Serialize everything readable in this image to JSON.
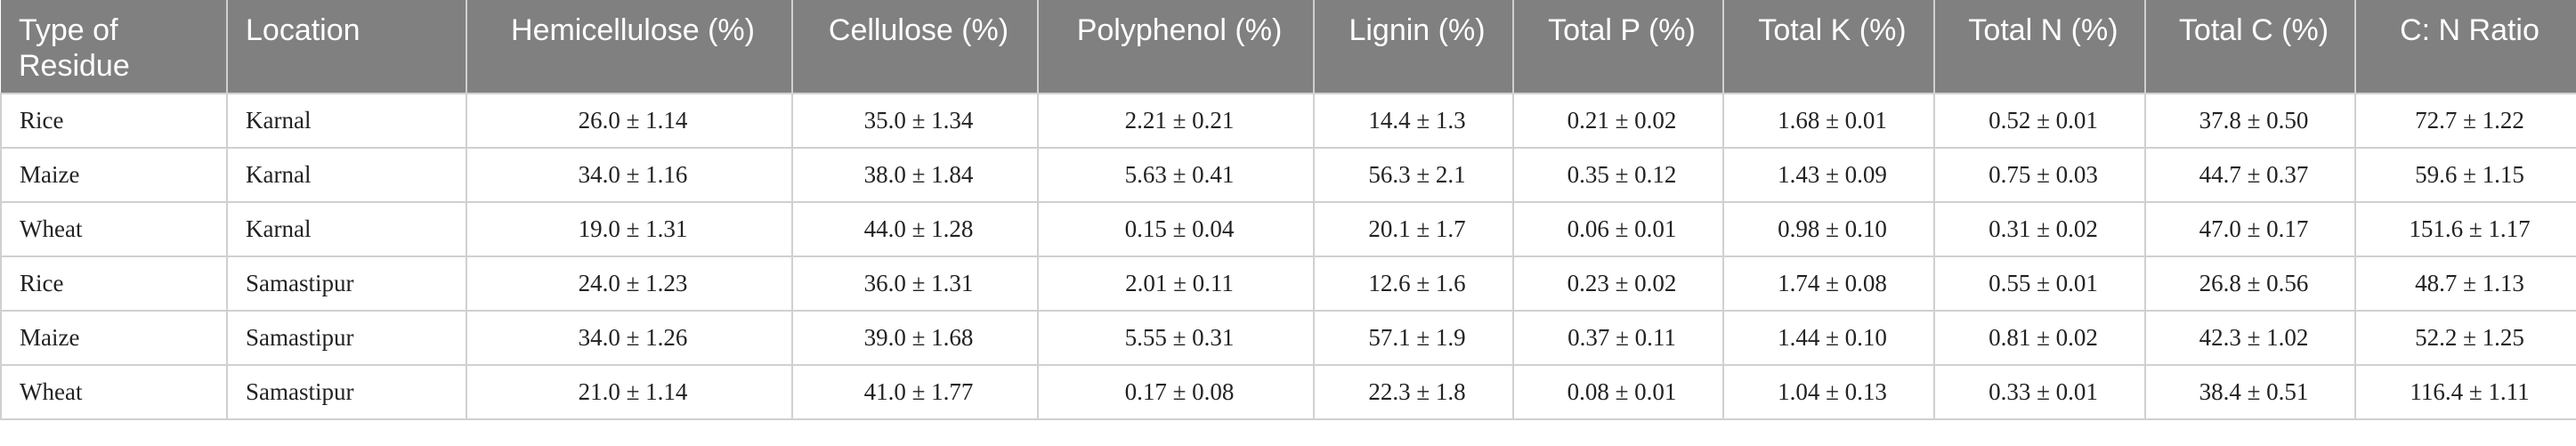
{
  "table": {
    "headers": [
      "Type of Residue",
      "Location",
      "Hemicellulose (%)",
      "Cellulose (%)",
      "Polyphenol (%)",
      "Lignin (%)",
      "Total P (%)",
      "Total K (%)",
      "Total N (%)",
      "Total C (%)",
      "C: N Ratio"
    ],
    "rows": [
      [
        "Rice",
        "Karnal",
        "26.0 ± 1.14",
        "35.0 ± 1.34",
        "2.21 ± 0.21",
        "14.4 ± 1.3",
        "0.21 ± 0.02",
        "1.68 ± 0.01",
        "0.52 ± 0.01",
        "37.8 ± 0.50",
        "72.7 ± 1.22"
      ],
      [
        "Maize",
        "Karnal",
        "34.0 ± 1.16",
        "38.0 ± 1.84",
        "5.63 ± 0.41",
        "56.3 ± 2.1",
        "0.35 ± 0.12",
        "1.43 ± 0.09",
        "0.75 ± 0.03",
        "44.7 ± 0.37",
        "59.6 ± 1.15"
      ],
      [
        "Wheat",
        "Karnal",
        "19.0 ± 1.31",
        "44.0 ± 1.28",
        "0.15 ± 0.04",
        "20.1 ± 1.7",
        "0.06 ± 0.01",
        "0.98 ± 0.10",
        "0.31 ± 0.02",
        "47.0 ± 0.17",
        "151.6 ± 1.17"
      ],
      [
        "Rice",
        "Samastipur",
        "24.0 ± 1.23",
        "36.0 ± 1.31",
        "2.01 ± 0.11",
        "12.6 ± 1.6",
        "0.23 ± 0.02",
        "1.74 ± 0.08",
        "0.55 ± 0.01",
        "26.8 ± 0.56",
        "48.7 ± 1.13"
      ],
      [
        "Maize",
        "Samastipur",
        "34.0 ± 1.26",
        "39.0 ± 1.68",
        "5.55 ± 0.31",
        "57.1 ± 1.9",
        "0.37 ± 0.11",
        "1.44 ± 0.10",
        "0.81 ± 0.02",
        "42.3 ± 1.02",
        "52.2 ± 1.25"
      ],
      [
        "Wheat",
        "Samastipur",
        "21.0 ± 1.14",
        "41.0 ± 1.77",
        "0.17 ± 0.08",
        "22.3 ± 1.8",
        "0.08 ± 0.01",
        "1.04 ± 0.13",
        "0.33 ± 0.01",
        "38.4 ± 0.51",
        "116.4 ± 1.11"
      ]
    ]
  }
}
